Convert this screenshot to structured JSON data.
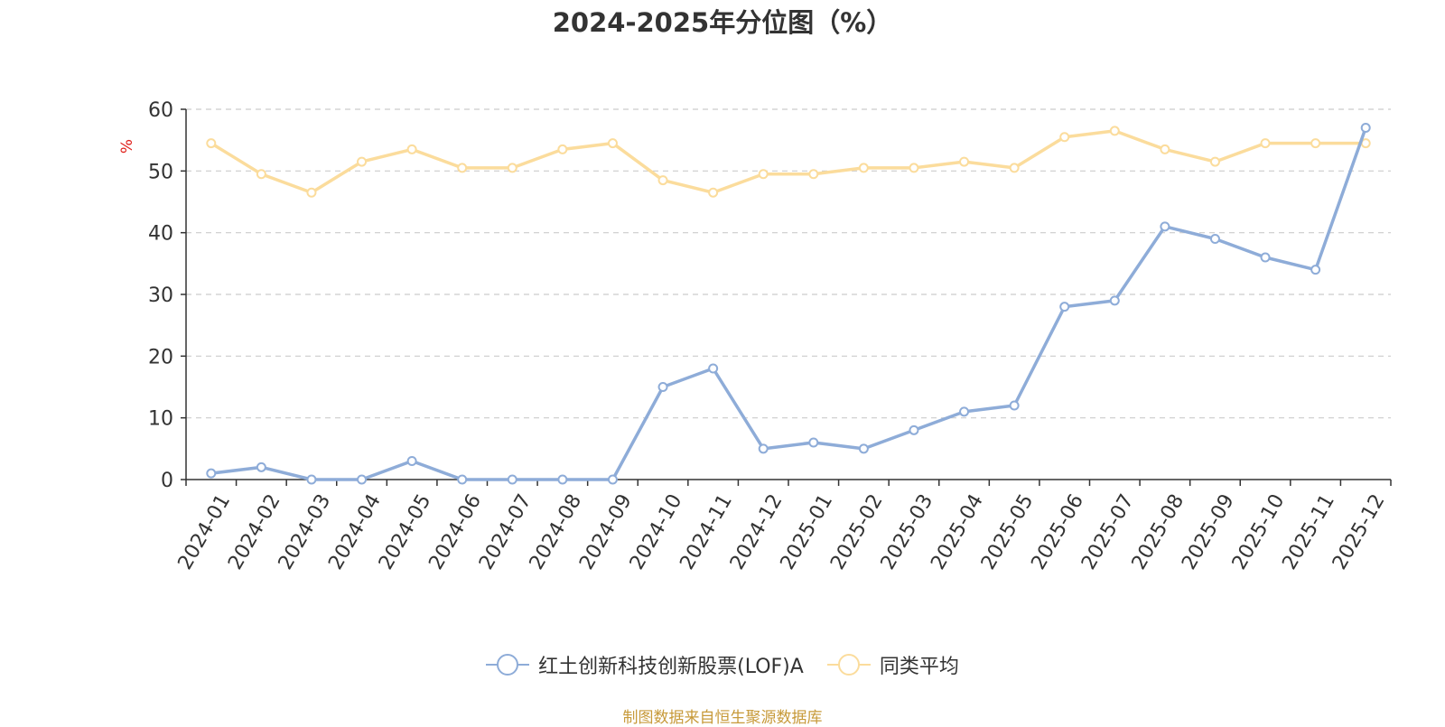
{
  "chart_data": {
    "type": "line",
    "title": "2024-2025年分位图（%）",
    "ylabel": "%",
    "xlabel": "",
    "ylim": [
      0,
      60
    ],
    "yticks": [
      0,
      10,
      20,
      30,
      40,
      50,
      60
    ],
    "grid": true,
    "legend_position": "bottom",
    "categories": [
      "2024-01",
      "2024-02",
      "2024-03",
      "2024-04",
      "2024-05",
      "2024-06",
      "2024-07",
      "2024-08",
      "2024-09",
      "2024-10",
      "2024-11",
      "2024-12",
      "2025-01",
      "2025-02",
      "2025-03",
      "2025-04",
      "2025-05",
      "2025-06",
      "2025-07",
      "2025-08",
      "2025-09",
      "2025-10",
      "2025-11",
      "2025-12"
    ],
    "series": [
      {
        "name": "红土创新科技创新股票(LOF)A",
        "color": "#8eacd8",
        "values": [
          1,
          2,
          0,
          0,
          3,
          0,
          0,
          0,
          0,
          15,
          18,
          5,
          6,
          5,
          8,
          11,
          12,
          28,
          29,
          41,
          39,
          36,
          34,
          57
        ]
      },
      {
        "name": "同类平均",
        "color": "#fbdc9c",
        "values": [
          54.5,
          49.5,
          46.5,
          51.5,
          53.5,
          50.5,
          50.5,
          53.5,
          54.5,
          48.5,
          46.5,
          49.5,
          49.5,
          50.5,
          50.5,
          51.5,
          50.5,
          55.5,
          56.5,
          53.5,
          51.5,
          54.5,
          54.5,
          54.5
        ]
      }
    ]
  },
  "footer": {
    "source": "制图数据来自恒生聚源数据库"
  }
}
